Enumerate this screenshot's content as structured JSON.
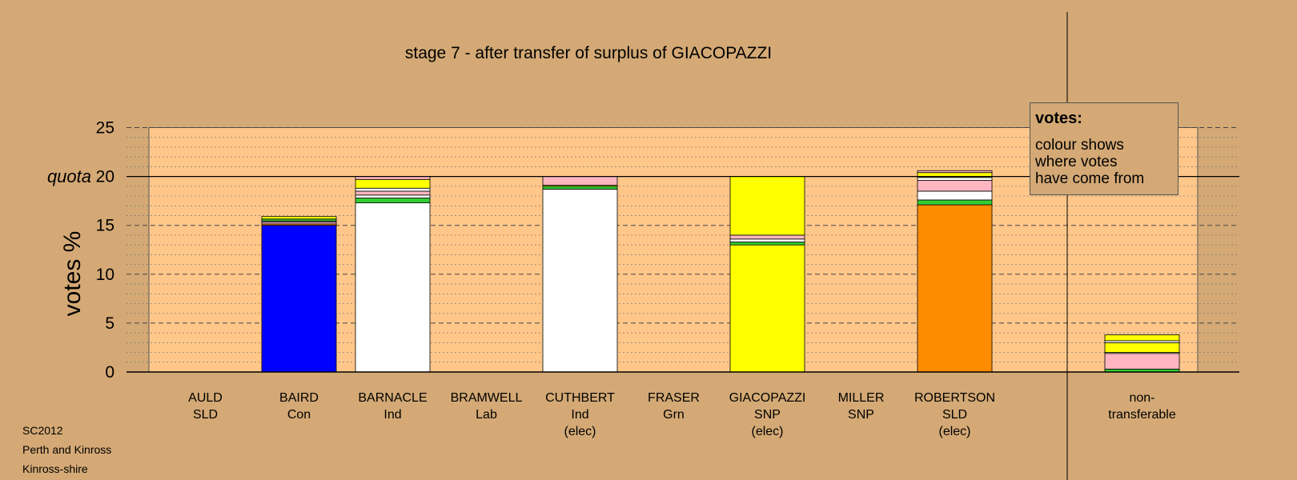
{
  "chart_data": {
    "type": "bar",
    "stacked": true,
    "title": "stage 7 - after transfer of surplus of GIACOPAZZI",
    "ylabel": "votes %",
    "quota_label": "quota",
    "quota": 20,
    "ylim": [
      0,
      25
    ],
    "yticks": [
      "0",
      "5",
      "10",
      "15",
      "20",
      "25"
    ],
    "grid": true,
    "categories": [
      {
        "name": "AULD",
        "party": "SLD",
        "note": ""
      },
      {
        "name": "BAIRD",
        "party": "Con",
        "note": ""
      },
      {
        "name": "BARNACLE",
        "party": "Ind",
        "note": ""
      },
      {
        "name": "BRAMWELL",
        "party": "Lab",
        "note": ""
      },
      {
        "name": "CUTHBERT",
        "party": "Ind",
        "note": "(elec)"
      },
      {
        "name": "FRASER",
        "party": "Grn",
        "note": ""
      },
      {
        "name": "GIACOPAZZI",
        "party": "SNP",
        "note": "(elec)"
      },
      {
        "name": "MILLER",
        "party": "SNP",
        "note": ""
      },
      {
        "name": "ROBERTSON",
        "party": "SLD",
        "note": "(elec)"
      }
    ],
    "non_transferable": {
      "label1": "non-",
      "label2": "transferable"
    },
    "stacks": [
      [],
      [
        {
          "value": 15.0,
          "color": "#0000ff"
        },
        {
          "value": 0.15,
          "color": "#ff8c00"
        },
        {
          "value": 0.2,
          "color": "#ffb6c1"
        },
        {
          "value": 0.1,
          "color": "#ffffff"
        },
        {
          "value": 0.2,
          "color": "#33cc33"
        },
        {
          "value": 0.25,
          "color": "#ffff00"
        }
      ],
      [
        {
          "value": 17.3,
          "color": "#ffffff"
        },
        {
          "value": 0.5,
          "color": "#33cc33"
        },
        {
          "value": 0.3,
          "color": "#ffffff"
        },
        {
          "value": 0.4,
          "color": "#ffb6c1"
        },
        {
          "value": 0.3,
          "color": "#ffffff"
        },
        {
          "value": 0.9,
          "color": "#ffff00"
        },
        {
          "value": 0.3,
          "color": "#ffb6c1"
        }
      ],
      [],
      [
        {
          "value": 18.7,
          "color": "#ffffff"
        },
        {
          "value": 0.3,
          "color": "#33cc33"
        },
        {
          "value": 0.1,
          "color": "#ffff00"
        },
        {
          "value": 0.9,
          "color": "#ffb6c1"
        }
      ],
      [],
      [
        {
          "value": 13.0,
          "color": "#ffff00"
        },
        {
          "value": 0.3,
          "color": "#33cc33"
        },
        {
          "value": 0.3,
          "color": "#ffffff"
        },
        {
          "value": 0.4,
          "color": "#ffb6c1"
        },
        {
          "value": 6.0,
          "color": "#ffff00"
        }
      ],
      [],
      [
        {
          "value": 17.1,
          "color": "#ff8c00"
        },
        {
          "value": 0.5,
          "color": "#33cc33"
        },
        {
          "value": 0.9,
          "color": "#ffffff"
        },
        {
          "value": 1.1,
          "color": "#ffb6c1"
        },
        {
          "value": 0.3,
          "color": "#ffffff"
        },
        {
          "value": 0.5,
          "color": "#ffff00"
        },
        {
          "value": 0.2,
          "color": "#ffb6c1"
        }
      ]
    ],
    "non_transferable_stack": [
      {
        "value": 0.3,
        "color": "#33cc33"
      },
      {
        "value": 1.6,
        "color": "#ffb6c1"
      },
      {
        "value": 0.1,
        "color": "#ffffff"
      },
      {
        "value": 1.0,
        "color": "#ffff00"
      },
      {
        "value": 0.2,
        "color": "#ffffff"
      },
      {
        "value": 0.6,
        "color": "#ffff00"
      }
    ],
    "colors": {
      "background": "#d4a975",
      "plot_background": "#ffc78a"
    }
  },
  "legend": {
    "title": "votes:",
    "lines": [
      "colour shows",
      "where votes",
      "have come from"
    ]
  },
  "footer": {
    "line1": "SC2012",
    "line2": "Perth and Kinross",
    "line3": "Kinross-shire"
  }
}
